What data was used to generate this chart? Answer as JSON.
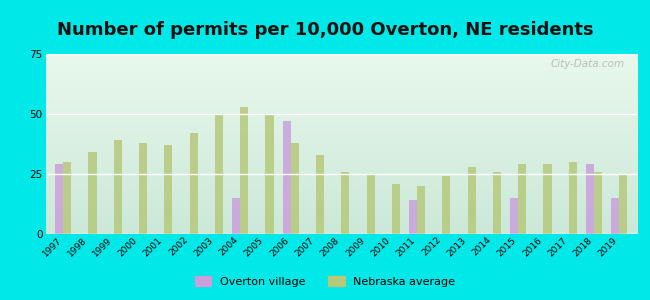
{
  "title": "Number of permits per 10,000 Overton, NE residents",
  "years": [
    1997,
    1998,
    1999,
    2000,
    2001,
    2002,
    2003,
    2004,
    2005,
    2006,
    2007,
    2008,
    2009,
    2010,
    2011,
    2012,
    2013,
    2014,
    2015,
    2016,
    2017,
    2018,
    2019
  ],
  "overton": [
    29,
    0,
    0,
    0,
    0,
    0,
    0,
    15,
    0,
    47,
    0,
    0,
    0,
    0,
    14,
    0,
    0,
    0,
    15,
    0,
    0,
    29,
    15
  ],
  "nebraska": [
    30,
    34,
    39,
    38,
    37,
    42,
    50,
    53,
    50,
    38,
    33,
    26,
    25,
    21,
    20,
    24,
    28,
    26,
    29,
    29,
    30,
    26,
    25
  ],
  "overton_color": "#c9a0dc",
  "nebraska_color": "#b5c97a",
  "bg_outer": "#00e8e8",
  "bg_plot_top": "#d8efe8",
  "bg_plot_bottom": "#e8f8e8",
  "ylim": [
    0,
    75
  ],
  "yticks": [
    0,
    25,
    50,
    75
  ],
  "title_fontsize": 13,
  "legend_labels": [
    "Overton village",
    "Nebraska average"
  ],
  "watermark": "City-Data.com"
}
